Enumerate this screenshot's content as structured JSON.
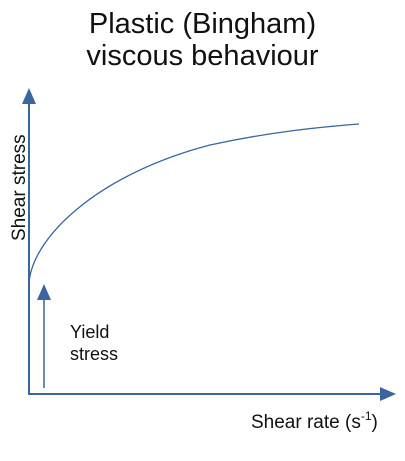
{
  "title": {
    "line1": "Plastic (Bingham)",
    "line2": "viscous behaviour"
  },
  "axes": {
    "y_label": "Shear stress",
    "x_label": "Shear rate (s",
    "x_label_superscript": "-1",
    "x_label_close": ")"
  },
  "annotation": {
    "line1": "Yield",
    "line2": "stress"
  },
  "colors": {
    "axis": "#3a65a0",
    "curve": "#3a65a0",
    "text": "#111111"
  }
}
